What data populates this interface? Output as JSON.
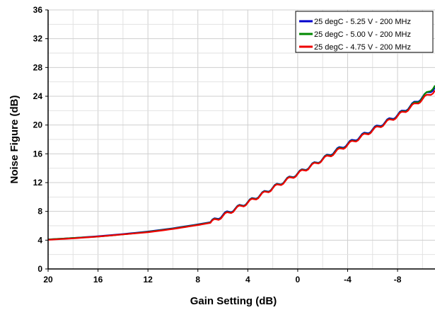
{
  "chart_data": {
    "type": "line",
    "title": "",
    "xlabel": "Gain Setting (dB)",
    "ylabel": "Noise Figure (dB)",
    "xlim": [
      20,
      -11
    ],
    "ylim": [
      0,
      36
    ],
    "x_reversed": true,
    "x_ticks": [
      20,
      16,
      12,
      8,
      4,
      0,
      -4,
      -8
    ],
    "y_ticks": [
      0,
      4,
      8,
      12,
      16,
      20,
      24,
      28,
      32,
      36
    ],
    "grid": true,
    "legend_position": "top-right",
    "series": [
      {
        "name": "25 degC - 5.25 V - 200 MHz",
        "color": "#0000cc",
        "x": [
          20,
          18,
          16,
          14,
          12,
          10,
          8,
          7,
          6,
          5,
          4,
          3,
          2,
          1,
          0,
          -1,
          -2,
          -3,
          -4,
          -5,
          -6,
          -7,
          -8,
          -9,
          -10,
          -11
        ],
        "y": [
          4.1,
          4.3,
          4.55,
          4.85,
          5.2,
          5.65,
          6.2,
          6.5,
          7.5,
          8.4,
          9.3,
          10.3,
          11.3,
          12.3,
          13.3,
          14.3,
          15.3,
          16.4,
          17.4,
          18.4,
          19.4,
          20.4,
          21.4,
          22.6,
          23.9,
          25.2
        ]
      },
      {
        "name": "25 degC - 5.00 V - 200 MHz",
        "color": "#008800",
        "x": [
          20,
          18,
          16,
          14,
          12,
          10,
          8,
          7,
          6,
          5,
          4,
          3,
          2,
          1,
          0,
          -1,
          -2,
          -3,
          -4,
          -5,
          -6,
          -7,
          -8,
          -9,
          -10,
          -11
        ],
        "y": [
          4.1,
          4.3,
          4.5,
          4.8,
          5.15,
          5.6,
          6.15,
          6.45,
          7.4,
          8.35,
          9.25,
          10.25,
          11.25,
          12.25,
          13.25,
          14.25,
          15.25,
          16.3,
          17.3,
          18.3,
          19.3,
          20.3,
          21.3,
          22.5,
          23.8,
          25.5
        ]
      },
      {
        "name": "25 degC - 4.75 V - 200 MHz",
        "color": "#ee0000",
        "x": [
          20,
          18,
          16,
          14,
          12,
          10,
          8,
          7,
          6,
          5,
          4,
          3,
          2,
          1,
          0,
          -1,
          -2,
          -3,
          -4,
          -5,
          -6,
          -7,
          -8,
          -9,
          -10,
          -11
        ],
        "y": [
          4.05,
          4.25,
          4.5,
          4.8,
          5.1,
          5.55,
          6.1,
          6.4,
          7.35,
          8.3,
          9.2,
          10.2,
          11.2,
          12.2,
          13.2,
          14.2,
          15.2,
          16.2,
          17.25,
          18.25,
          19.25,
          20.25,
          21.25,
          22.4,
          23.6,
          24.8
        ]
      }
    ]
  }
}
